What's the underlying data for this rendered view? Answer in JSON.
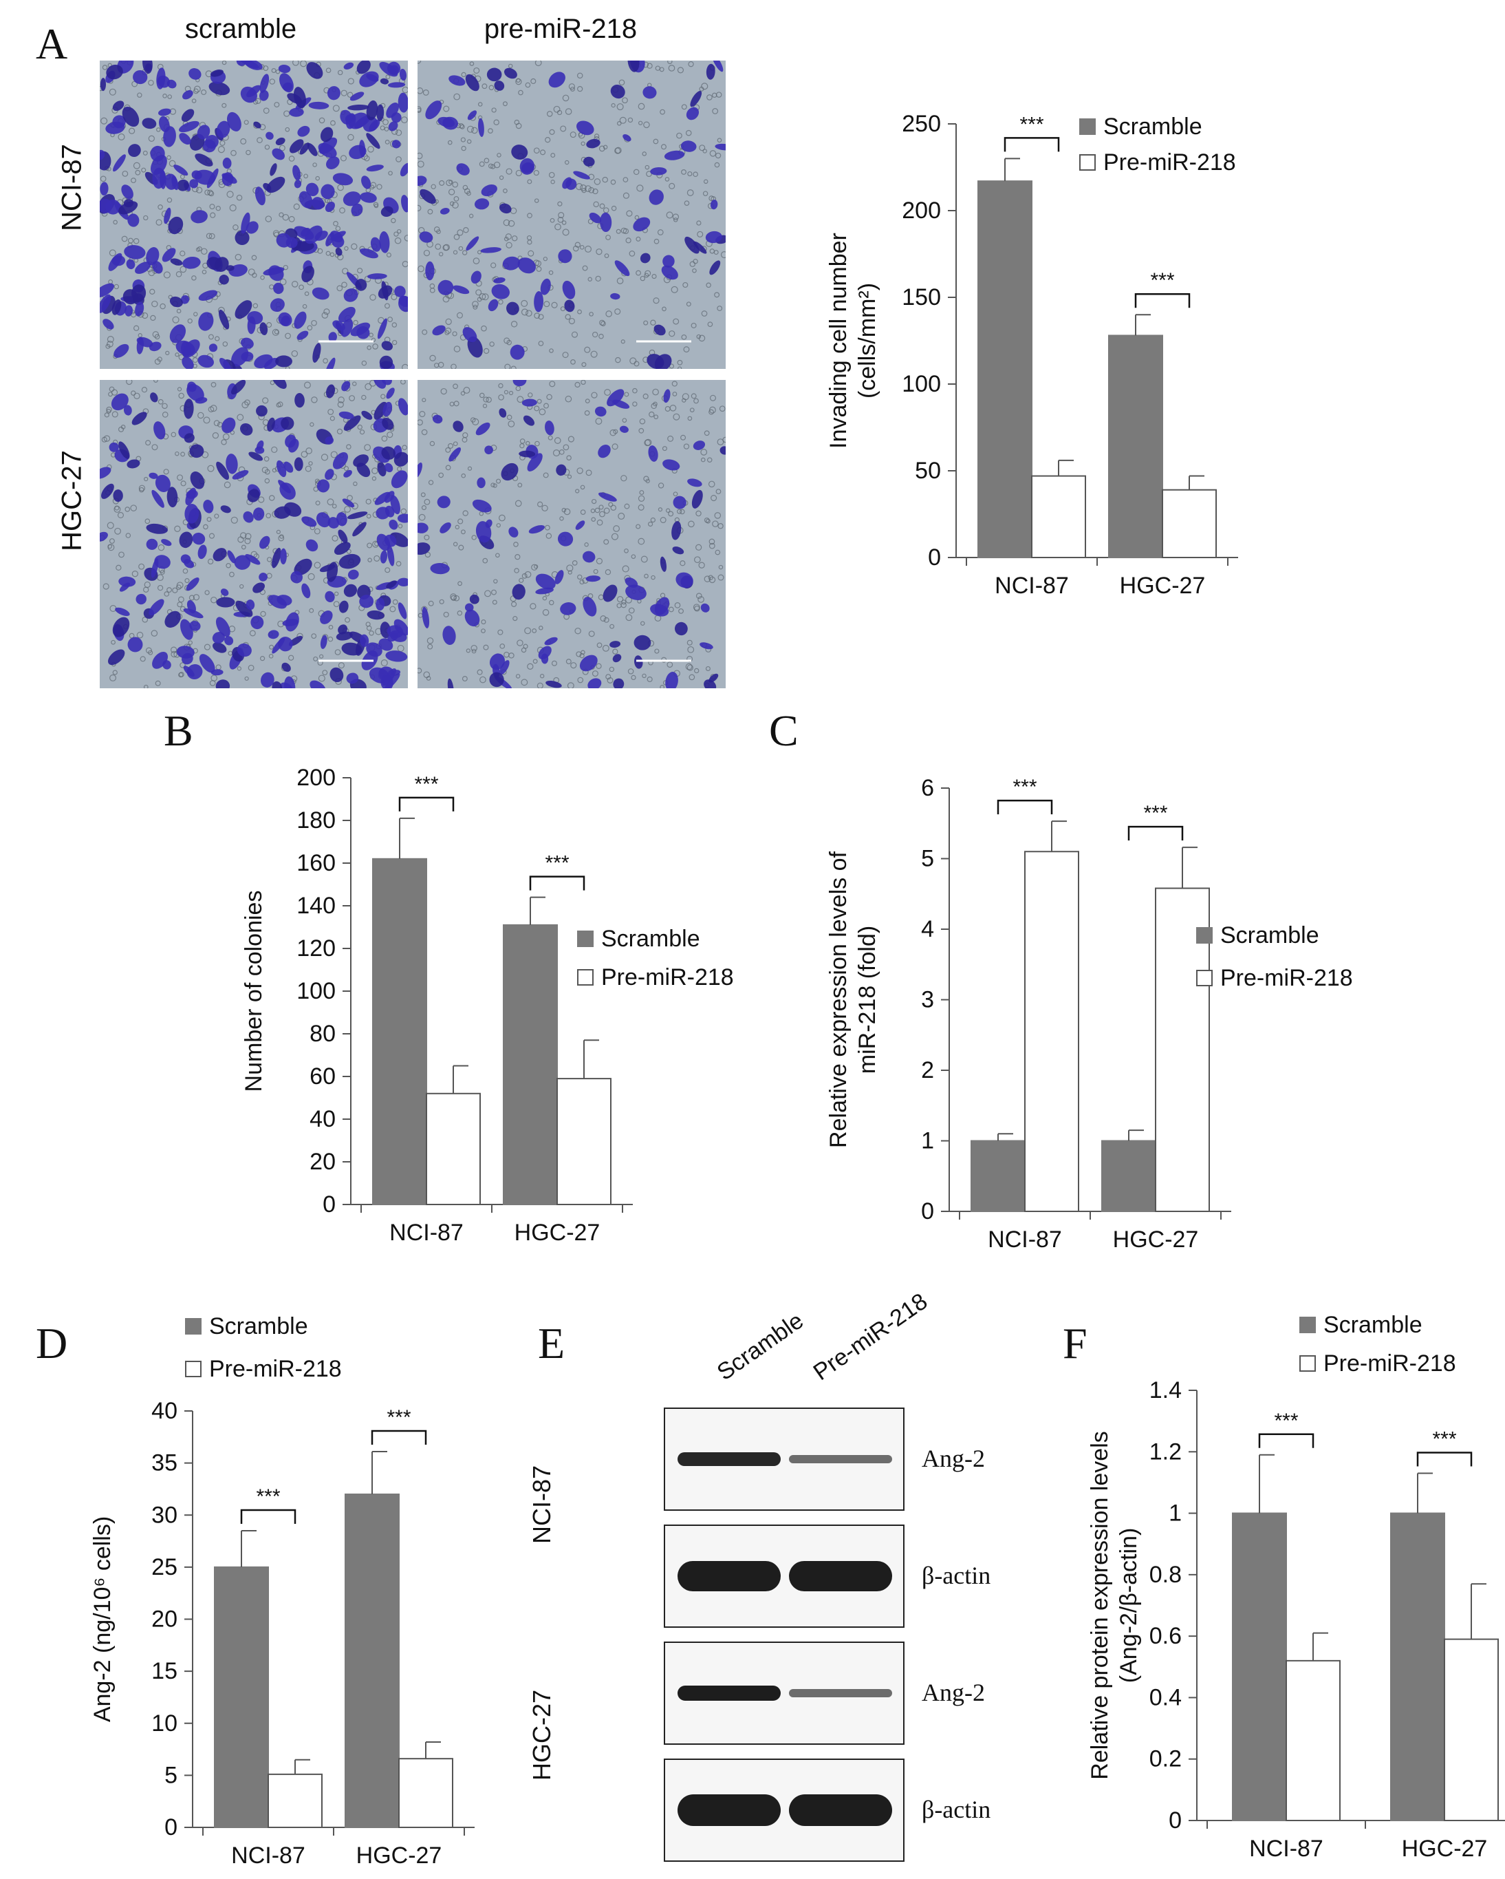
{
  "panels": {
    "A": {
      "letter": "A",
      "col_heads": [
        "scramble",
        "pre-miR-218"
      ],
      "row_heads": [
        "NCI-87",
        "HGC-27"
      ]
    },
    "B": {
      "letter": "B"
    },
    "C": {
      "letter": "C"
    },
    "D": {
      "letter": "D"
    },
    "E": {
      "letter": "E",
      "lanes": [
        "Scramble",
        "Pre-miR-218"
      ],
      "groups": [
        "NCI-87",
        "HGC-27"
      ],
      "bands": [
        "Ang-2",
        "β-actin",
        "Ang-2",
        "β-actin"
      ]
    },
    "F": {
      "letter": "F"
    }
  },
  "colors": {
    "scramble": "#7a7a7a",
    "pre": "#ffffff",
    "stain": "#3d2fb8"
  },
  "chart_data": [
    {
      "id": "A",
      "type": "bar",
      "categories": [
        "NCI-87",
        "HGC-27"
      ],
      "series": [
        {
          "name": "Scramble",
          "values": [
            217,
            128
          ],
          "errors": [
            13,
            12
          ]
        },
        {
          "name": "Pre-miR-218",
          "values": [
            47,
            39
          ],
          "errors": [
            9,
            8
          ]
        }
      ],
      "ylabel_lines": [
        "Invading cell number",
        "(cells/mm²)"
      ],
      "ylim": [
        0,
        250
      ],
      "yticks": [
        0,
        50,
        100,
        150,
        200,
        250
      ],
      "significance": [
        "***",
        "***"
      ],
      "legend": "top-right"
    },
    {
      "id": "B",
      "type": "bar",
      "categories": [
        "NCI-87",
        "HGC-27"
      ],
      "series": [
        {
          "name": "Scramble",
          "values": [
            162,
            131
          ],
          "errors": [
            19,
            13
          ]
        },
        {
          "name": "Pre-miR-218",
          "values": [
            52,
            59
          ],
          "errors": [
            13,
            18
          ]
        }
      ],
      "ylabel_lines": [
        "Number of colonies"
      ],
      "ylim": [
        0,
        200
      ],
      "yticks": [
        0,
        20,
        40,
        60,
        80,
        100,
        120,
        140,
        160,
        180,
        200
      ],
      "significance": [
        "***",
        "***"
      ],
      "legend": "right"
    },
    {
      "id": "C",
      "type": "bar",
      "categories": [
        "NCI-87",
        "HGC-27"
      ],
      "series": [
        {
          "name": "Scramble",
          "values": [
            1,
            1
          ],
          "errors": [
            0.1,
            0.15
          ]
        },
        {
          "name": "Pre-miR-218",
          "values": [
            5.1,
            4.58
          ],
          "errors": [
            0.43,
            0.58
          ]
        }
      ],
      "ylabel_lines": [
        "Relative expression levels of",
        "miR-218 (fold)"
      ],
      "ylim": [
        0,
        6
      ],
      "yticks": [
        0,
        1,
        2,
        3,
        4,
        5,
        6
      ],
      "significance": [
        "***",
        "***"
      ],
      "legend": "right"
    },
    {
      "id": "D",
      "type": "bar",
      "categories": [
        "NCI-87",
        "HGC-27"
      ],
      "series": [
        {
          "name": "Scramble",
          "values": [
            25,
            32
          ],
          "errors": [
            3.5,
            4.1
          ]
        },
        {
          "name": "Pre-miR-218",
          "values": [
            5.1,
            6.6
          ],
          "errors": [
            1.4,
            1.6
          ]
        }
      ],
      "ylabel_lines": [
        "Ang-2 (ng/10⁶ cells)"
      ],
      "ylim": [
        0,
        40
      ],
      "yticks": [
        0,
        5,
        10,
        15,
        20,
        25,
        30,
        35,
        40
      ],
      "significance": [
        "***",
        "***"
      ],
      "legend": "top"
    },
    {
      "id": "F",
      "type": "bar",
      "categories": [
        "NCI-87",
        "HGC-27"
      ],
      "series": [
        {
          "name": "Scramble",
          "values": [
            1,
            1
          ],
          "errors": [
            0.19,
            0.13
          ]
        },
        {
          "name": "Pre-miR-218",
          "values": [
            0.52,
            0.59
          ],
          "errors": [
            0.09,
            0.18
          ]
        }
      ],
      "ylabel_lines": [
        "Relative protein expression levels",
        "(Ang-2/β-actin)"
      ],
      "ylim": [
        0,
        1.4
      ],
      "yticks": [
        0,
        0.2,
        0.4,
        0.6,
        0.8,
        1,
        1.2,
        1.4
      ],
      "significance": [
        "***",
        "***"
      ],
      "legend": "top"
    }
  ]
}
